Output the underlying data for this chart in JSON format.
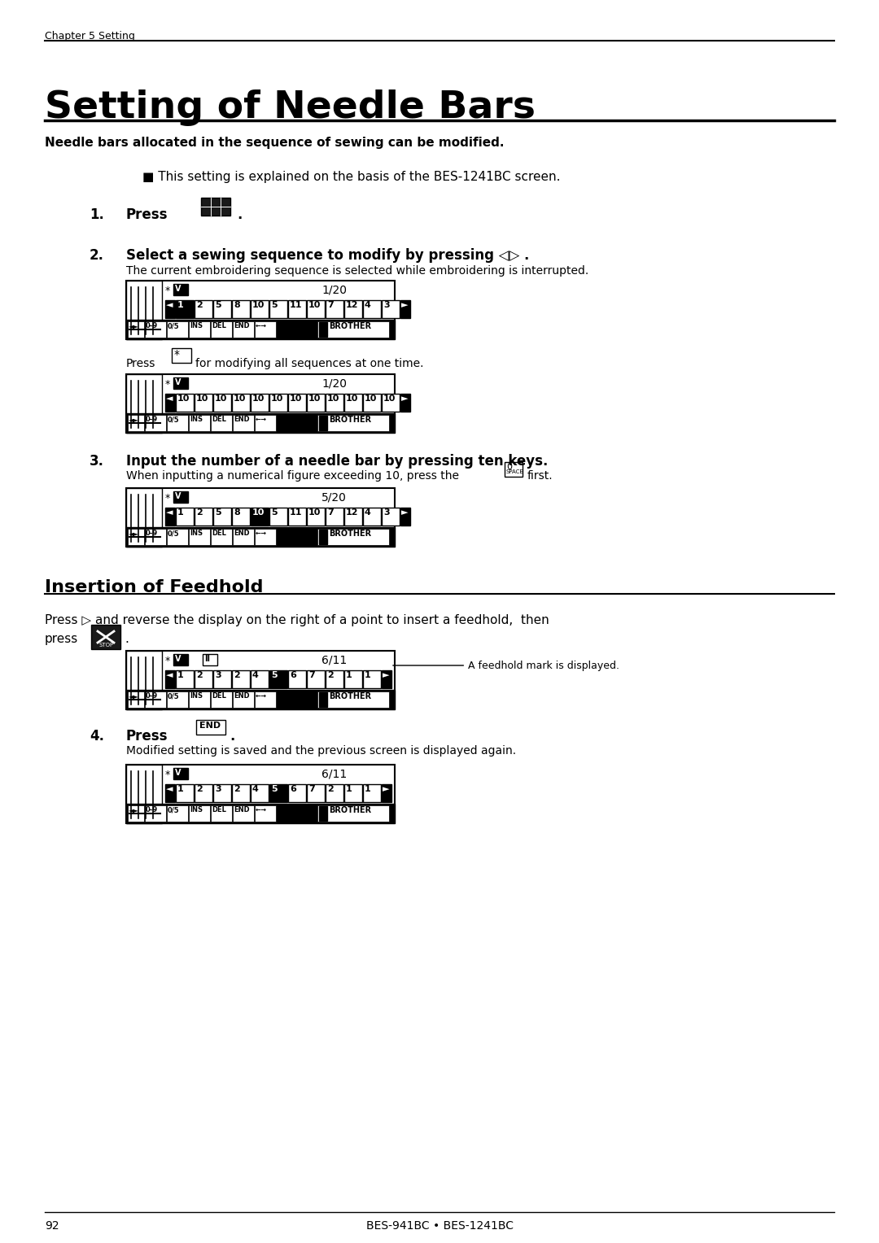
{
  "page_title": "Setting of Needle Bars",
  "chapter_label": "Chapter 5 Setting",
  "subtitle_bold": "Needle bars allocated in the sequence of sewing can be modified.",
  "note_line": "■ This setting is explained on the basis of the BES-1241BC screen.",
  "step1_label": "1.",
  "step1_text": "Press",
  "step2_label": "2.",
  "step2_text": "Select a sewing sequence to modify by pressing ◁▷ .",
  "step2_sub": "The current embroidering sequence is selected while embroidering is interrupted.",
  "press_star_text": "Press      for modifying all sequences at one time.",
  "step3_label": "3.",
  "step3_text": "Input the number of a needle bar by pressing ten keys.",
  "step3_sub": "When inputting a numerical figure exceeding 10, press the       first.",
  "step3_sub_key": "0\nSPACE",
  "section2_title": "Insertion of Feedhold",
  "feedhold_text": "Press ▷ and reverse the display on the right of a point to insert a feedhold,  then",
  "feedhold_text2": "press        .",
  "step4_label": "4.",
  "step4_text": "Press        .",
  "step4_sub": "Modified setting is saved and the previous screen is displayed again.",
  "footer_page": "92",
  "footer_model": "BES-941BC • BES-1241BC",
  "bg_color": "#ffffff",
  "text_color": "#000000",
  "screen_bg": "#ffffff",
  "screen_border": "#000000"
}
